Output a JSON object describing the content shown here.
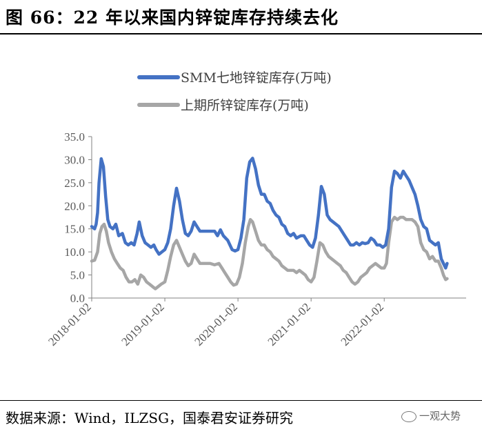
{
  "header": {
    "title": "图 66：22 年以来国内锌锭库存持续去化"
  },
  "footer": {
    "source": "数据来源：Wind，ILZSG，国泰君安证券研究",
    "watermark": "一观大势"
  },
  "colors": {
    "smm": "#4472C4",
    "shfe": "#A6A6A6",
    "axis": "#808080",
    "text": "#595959"
  },
  "chart_data": {
    "type": "line",
    "title": "",
    "xlabel": "",
    "ylabel": "",
    "ylim": [
      0,
      35
    ],
    "yticks": [
      "0.0",
      "5.0",
      "10.0",
      "15.0",
      "20.0",
      "25.0",
      "30.0",
      "35.0"
    ],
    "xlim": [
      2018.0,
      2023.12
    ],
    "xticks": [
      {
        "label": "2018-01-02",
        "x": 2018.0
      },
      {
        "label": "2019-01-02",
        "x": 2019.0
      },
      {
        "label": "2020-01-02",
        "x": 2020.0
      },
      {
        "label": "2021-01-02",
        "x": 2021.0
      },
      {
        "label": "2022-01-02",
        "x": 2022.0
      }
    ],
    "series": [
      {
        "name": "SMM七地锌锭库存(万吨)",
        "color": "#4472C4",
        "points": [
          [
            2018.0,
            15.5
          ],
          [
            2018.04,
            15.0
          ],
          [
            2018.06,
            16.0
          ],
          [
            2018.08,
            18.5
          ],
          [
            2018.1,
            25.0
          ],
          [
            2018.13,
            30.2
          ],
          [
            2018.16,
            28.5
          ],
          [
            2018.19,
            22.0
          ],
          [
            2018.22,
            17.0
          ],
          [
            2018.25,
            15.5
          ],
          [
            2018.29,
            15.0
          ],
          [
            2018.33,
            16.0
          ],
          [
            2018.37,
            13.5
          ],
          [
            2018.42,
            14.0
          ],
          [
            2018.46,
            12.0
          ],
          [
            2018.5,
            11.5
          ],
          [
            2018.54,
            12.0
          ],
          [
            2018.58,
            11.5
          ],
          [
            2018.62,
            14.0
          ],
          [
            2018.65,
            16.5
          ],
          [
            2018.69,
            13.5
          ],
          [
            2018.73,
            12.0
          ],
          [
            2018.77,
            11.5
          ],
          [
            2018.81,
            11.0
          ],
          [
            2018.85,
            11.5
          ],
          [
            2018.88,
            10.5
          ],
          [
            2018.92,
            9.5
          ],
          [
            2018.96,
            10.0
          ],
          [
            2019.0,
            10.5
          ],
          [
            2019.04,
            12.0
          ],
          [
            2019.08,
            15.0
          ],
          [
            2019.12,
            20.0
          ],
          [
            2019.16,
            23.8
          ],
          [
            2019.2,
            21.0
          ],
          [
            2019.24,
            17.0
          ],
          [
            2019.28,
            14.0
          ],
          [
            2019.32,
            13.5
          ],
          [
            2019.36,
            14.5
          ],
          [
            2019.4,
            16.5
          ],
          [
            2019.44,
            15.5
          ],
          [
            2019.48,
            14.5
          ],
          [
            2019.55,
            14.5
          ],
          [
            2019.62,
            14.5
          ],
          [
            2019.68,
            14.5
          ],
          [
            2019.72,
            13.5
          ],
          [
            2019.76,
            14.8
          ],
          [
            2019.8,
            13.5
          ],
          [
            2019.86,
            12.5
          ],
          [
            2019.92,
            10.5
          ],
          [
            2019.96,
            10.2
          ],
          [
            2020.0,
            10.5
          ],
          [
            2020.04,
            13.0
          ],
          [
            2020.08,
            17.0
          ],
          [
            2020.12,
            26.0
          ],
          [
            2020.16,
            29.5
          ],
          [
            2020.2,
            30.3
          ],
          [
            2020.24,
            28.0
          ],
          [
            2020.28,
            24.5
          ],
          [
            2020.32,
            22.5
          ],
          [
            2020.36,
            22.5
          ],
          [
            2020.4,
            21.0
          ],
          [
            2020.44,
            20.5
          ],
          [
            2020.48,
            19.0
          ],
          [
            2020.52,
            18.0
          ],
          [
            2020.56,
            17.5
          ],
          [
            2020.6,
            16.0
          ],
          [
            2020.64,
            15.5
          ],
          [
            2020.68,
            14.0
          ],
          [
            2020.72,
            13.5
          ],
          [
            2020.76,
            14.0
          ],
          [
            2020.8,
            13.0
          ],
          [
            2020.86,
            13.5
          ],
          [
            2020.9,
            13.5
          ],
          [
            2020.94,
            12.5
          ],
          [
            2020.98,
            11.5
          ],
          [
            2021.02,
            11.0
          ],
          [
            2021.06,
            13.0
          ],
          [
            2021.1,
            18.0
          ],
          [
            2021.14,
            24.2
          ],
          [
            2021.18,
            22.5
          ],
          [
            2021.22,
            18.0
          ],
          [
            2021.26,
            17.0
          ],
          [
            2021.3,
            16.5
          ],
          [
            2021.34,
            16.0
          ],
          [
            2021.38,
            15.5
          ],
          [
            2021.42,
            14.5
          ],
          [
            2021.46,
            13.5
          ],
          [
            2021.5,
            12.5
          ],
          [
            2021.54,
            11.5
          ],
          [
            2021.58,
            11.5
          ],
          [
            2021.62,
            12.0
          ],
          [
            2021.66,
            11.5
          ],
          [
            2021.7,
            12.0
          ],
          [
            2021.74,
            11.8
          ],
          [
            2021.78,
            12.0
          ],
          [
            2021.82,
            13.0
          ],
          [
            2021.86,
            12.5
          ],
          [
            2021.9,
            11.5
          ],
          [
            2021.94,
            11.5
          ],
          [
            2021.98,
            11.0
          ],
          [
            2022.02,
            11.5
          ],
          [
            2022.06,
            15.0
          ],
          [
            2022.1,
            24.0
          ],
          [
            2022.14,
            27.5
          ],
          [
            2022.18,
            27.0
          ],
          [
            2022.22,
            26.0
          ],
          [
            2022.26,
            27.5
          ],
          [
            2022.3,
            26.5
          ],
          [
            2022.34,
            25.5
          ],
          [
            2022.38,
            24.0
          ],
          [
            2022.42,
            22.5
          ],
          [
            2022.46,
            20.0
          ],
          [
            2022.5,
            17.0
          ],
          [
            2022.54,
            15.5
          ],
          [
            2022.58,
            15.0
          ],
          [
            2022.62,
            12.5
          ],
          [
            2022.66,
            12.0
          ],
          [
            2022.7,
            11.5
          ],
          [
            2022.74,
            12.0
          ],
          [
            2022.78,
            8.5
          ],
          [
            2022.81,
            7.5
          ],
          [
            2022.84,
            6.5
          ],
          [
            2022.86,
            7.5
          ]
        ]
      },
      {
        "name": "上期所锌锭库存(万吨)",
        "color": "#A6A6A6",
        "points": [
          [
            2018.0,
            8.0
          ],
          [
            2018.04,
            8.2
          ],
          [
            2018.08,
            10.0
          ],
          [
            2018.11,
            14.0
          ],
          [
            2018.14,
            15.5
          ],
          [
            2018.17,
            16.0
          ],
          [
            2018.2,
            14.5
          ],
          [
            2018.23,
            12.0
          ],
          [
            2018.27,
            10.0
          ],
          [
            2018.31,
            8.5
          ],
          [
            2018.35,
            7.5
          ],
          [
            2018.39,
            6.5
          ],
          [
            2018.43,
            6.0
          ],
          [
            2018.47,
            4.5
          ],
          [
            2018.51,
            3.5
          ],
          [
            2018.55,
            3.5
          ],
          [
            2018.59,
            4.0
          ],
          [
            2018.63,
            3.0
          ],
          [
            2018.67,
            5.0
          ],
          [
            2018.71,
            4.5
          ],
          [
            2018.75,
            3.5
          ],
          [
            2018.79,
            3.0
          ],
          [
            2018.83,
            2.5
          ],
          [
            2018.87,
            2.0
          ],
          [
            2018.91,
            2.5
          ],
          [
            2018.95,
            3.0
          ],
          [
            2019.0,
            3.5
          ],
          [
            2019.04,
            6.0
          ],
          [
            2019.08,
            9.0
          ],
          [
            2019.12,
            11.5
          ],
          [
            2019.16,
            12.5
          ],
          [
            2019.2,
            11.0
          ],
          [
            2019.24,
            9.5
          ],
          [
            2019.28,
            8.0
          ],
          [
            2019.32,
            7.0
          ],
          [
            2019.36,
            7.5
          ],
          [
            2019.4,
            9.5
          ],
          [
            2019.44,
            8.5
          ],
          [
            2019.48,
            7.5
          ],
          [
            2019.55,
            7.5
          ],
          [
            2019.62,
            7.5
          ],
          [
            2019.68,
            7.2
          ],
          [
            2019.74,
            7.5
          ],
          [
            2019.78,
            6.5
          ],
          [
            2019.82,
            5.5
          ],
          [
            2019.86,
            4.5
          ],
          [
            2019.9,
            3.5
          ],
          [
            2019.94,
            2.8
          ],
          [
            2019.98,
            3.0
          ],
          [
            2020.02,
            4.5
          ],
          [
            2020.06,
            7.5
          ],
          [
            2020.1,
            12.0
          ],
          [
            2020.14,
            15.5
          ],
          [
            2020.17,
            17.0
          ],
          [
            2020.2,
            16.5
          ],
          [
            2020.24,
            14.5
          ],
          [
            2020.28,
            12.5
          ],
          [
            2020.32,
            11.5
          ],
          [
            2020.36,
            11.5
          ],
          [
            2020.4,
            10.5
          ],
          [
            2020.44,
            10.0
          ],
          [
            2020.48,
            9.0
          ],
          [
            2020.52,
            8.5
          ],
          [
            2020.56,
            8.0
          ],
          [
            2020.6,
            7.0
          ],
          [
            2020.64,
            6.5
          ],
          [
            2020.68,
            6.0
          ],
          [
            2020.72,
            6.0
          ],
          [
            2020.76,
            6.0
          ],
          [
            2020.8,
            5.5
          ],
          [
            2020.84,
            6.0
          ],
          [
            2020.88,
            5.5
          ],
          [
            2020.92,
            5.0
          ],
          [
            2020.96,
            4.0
          ],
          [
            2021.0,
            3.5
          ],
          [
            2021.04,
            4.5
          ],
          [
            2021.08,
            8.0
          ],
          [
            2021.12,
            12.0
          ],
          [
            2021.16,
            11.5
          ],
          [
            2021.2,
            10.0
          ],
          [
            2021.24,
            9.0
          ],
          [
            2021.28,
            8.5
          ],
          [
            2021.32,
            8.0
          ],
          [
            2021.36,
            7.5
          ],
          [
            2021.4,
            7.0
          ],
          [
            2021.44,
            6.0
          ],
          [
            2021.48,
            5.5
          ],
          [
            2021.52,
            4.5
          ],
          [
            2021.56,
            3.5
          ],
          [
            2021.6,
            3.0
          ],
          [
            2021.64,
            3.5
          ],
          [
            2021.68,
            4.5
          ],
          [
            2021.72,
            5.0
          ],
          [
            2021.76,
            5.5
          ],
          [
            2021.8,
            6.5
          ],
          [
            2021.84,
            7.0
          ],
          [
            2021.88,
            7.5
          ],
          [
            2021.92,
            7.0
          ],
          [
            2021.96,
            6.5
          ],
          [
            2022.0,
            6.5
          ],
          [
            2022.03,
            7.5
          ],
          [
            2022.06,
            12.0
          ],
          [
            2022.1,
            16.5
          ],
          [
            2022.14,
            17.5
          ],
          [
            2022.18,
            17.0
          ],
          [
            2022.22,
            17.5
          ],
          [
            2022.26,
            17.5
          ],
          [
            2022.3,
            17.0
          ],
          [
            2022.34,
            17.0
          ],
          [
            2022.38,
            17.0
          ],
          [
            2022.42,
            16.5
          ],
          [
            2022.46,
            15.5
          ],
          [
            2022.5,
            12.0
          ],
          [
            2022.54,
            10.5
          ],
          [
            2022.58,
            10.0
          ],
          [
            2022.62,
            8.5
          ],
          [
            2022.66,
            9.0
          ],
          [
            2022.7,
            8.0
          ],
          [
            2022.74,
            8.0
          ],
          [
            2022.78,
            6.5
          ],
          [
            2022.81,
            5.0
          ],
          [
            2022.84,
            4.0
          ],
          [
            2022.86,
            4.2
          ]
        ]
      }
    ]
  }
}
